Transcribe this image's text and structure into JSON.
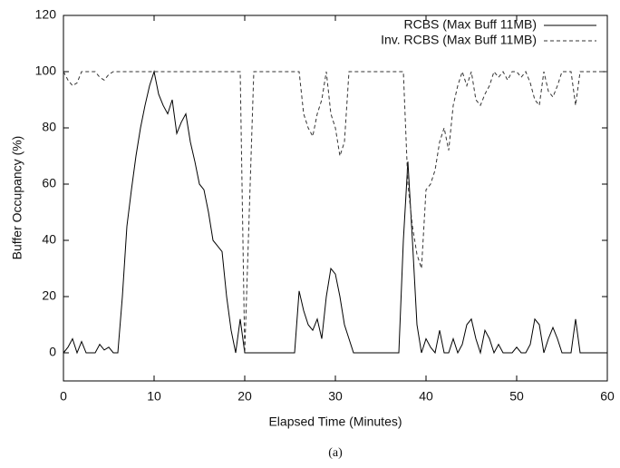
{
  "chart_data": {
    "type": "line",
    "xlabel": "Elapsed Time (Minutes)",
    "ylabel": "Buffer Occupancy (%)",
    "caption": "(a)",
    "x": [
      0,
      0.5,
      1,
      1.5,
      2,
      2.5,
      3,
      3.5,
      4,
      4.5,
      5,
      5.5,
      6,
      6.5,
      7,
      7.5,
      8,
      8.5,
      9,
      9.5,
      10,
      10.5,
      11,
      11.5,
      12,
      12.5,
      13,
      13.5,
      14,
      14.5,
      15,
      15.5,
      16,
      16.5,
      17,
      17.5,
      18,
      18.5,
      19,
      19.5,
      20,
      20.5,
      21,
      21.5,
      22,
      22.5,
      23,
      23.5,
      24,
      24.5,
      25,
      25.5,
      26,
      26.5,
      27,
      27.5,
      28,
      28.5,
      29,
      29.5,
      30,
      30.5,
      31,
      31.5,
      32,
      32.5,
      33,
      33.5,
      34,
      34.5,
      35,
      35.5,
      36,
      36.5,
      37,
      37.5,
      38,
      38.5,
      39,
      39.5,
      40,
      40.5,
      41,
      41.5,
      42,
      42.5,
      43,
      43.5,
      44,
      44.5,
      45,
      45.5,
      46,
      46.5,
      47,
      47.5,
      48,
      48.5,
      49,
      49.5,
      50,
      50.5,
      51,
      51.5,
      52,
      52.5,
      53,
      53.5,
      54,
      54.5,
      55,
      55.5,
      56,
      56.5,
      57,
      57.5,
      58,
      58.5,
      59,
      59.5,
      60
    ],
    "series": [
      {
        "name": "RCBS (Max Buff 11MB)",
        "color": "#000000",
        "line_style": "solid",
        "values": [
          0,
          2,
          5,
          0,
          4,
          0,
          0,
          0,
          3,
          1,
          2,
          0,
          0,
          20,
          45,
          58,
          70,
          80,
          88,
          95,
          100,
          92,
          88,
          85,
          90,
          78,
          82,
          85,
          75,
          68,
          60,
          58,
          50,
          40,
          38,
          36,
          20,
          8,
          0,
          12,
          0,
          0,
          0,
          0,
          0,
          0,
          0,
          0,
          0,
          0,
          0,
          0,
          22,
          15,
          10,
          8,
          12,
          5,
          20,
          30,
          28,
          20,
          10,
          5,
          0,
          0,
          0,
          0,
          0,
          0,
          0,
          0,
          0,
          0,
          0,
          40,
          68,
          40,
          10,
          0,
          5,
          2,
          0,
          8,
          0,
          0,
          5,
          0,
          3,
          10,
          12,
          5,
          0,
          8,
          5,
          0,
          3,
          0,
          0,
          0,
          2,
          0,
          0,
          3,
          12,
          10,
          0,
          5,
          9,
          5,
          0,
          0,
          0,
          12,
          0,
          0,
          0,
          0,
          0,
          0,
          0
        ]
      },
      {
        "name": "Inv. RCBS (Max Buff 11MB)",
        "color": "#333333",
        "line_style": "dashed",
        "values": [
          100,
          97,
          95,
          96,
          100,
          100,
          100,
          100,
          98,
          97,
          99,
          100,
          100,
          100,
          100,
          100,
          100,
          100,
          100,
          100,
          100,
          100,
          100,
          100,
          100,
          100,
          100,
          100,
          100,
          100,
          100,
          100,
          100,
          100,
          100,
          100,
          100,
          100,
          100,
          100,
          0,
          50,
          100,
          100,
          100,
          100,
          100,
          100,
          100,
          100,
          100,
          100,
          100,
          85,
          80,
          77,
          85,
          90,
          100,
          85,
          80,
          70,
          75,
          100,
          100,
          100,
          100,
          100,
          100,
          100,
          100,
          100,
          100,
          100,
          100,
          100,
          60,
          45,
          35,
          30,
          58,
          60,
          65,
          75,
          80,
          72,
          88,
          95,
          100,
          95,
          100,
          90,
          88,
          92,
          95,
          100,
          98,
          100,
          97,
          100,
          100,
          98,
          100,
          96,
          90,
          88,
          100,
          93,
          91,
          95,
          100,
          100,
          100,
          88,
          100,
          100,
          100,
          100,
          100,
          100,
          100
        ]
      }
    ],
    "xlim": [
      0,
      60
    ],
    "xticks": [
      0,
      10,
      20,
      30,
      40,
      50,
      60
    ],
    "ylim": [
      -10,
      120
    ],
    "yticks": [
      0,
      20,
      40,
      60,
      80,
      100,
      120
    ],
    "grid": false,
    "legend": "upper right"
  }
}
